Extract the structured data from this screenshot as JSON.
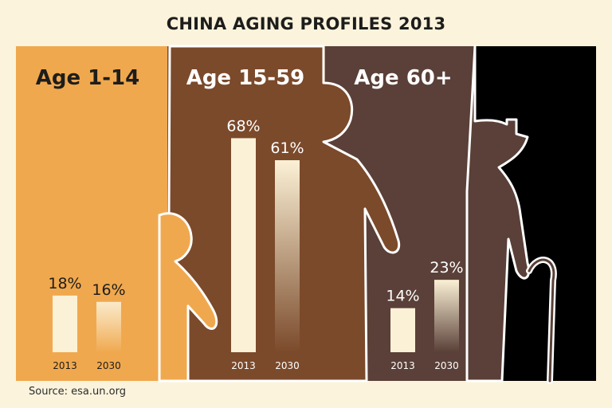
{
  "title": "CHINA AGING PROFILES 2013",
  "source": "Source: esa.un.org",
  "colors": {
    "background": "#fbf3dc",
    "group_1_14": "#f0a84e",
    "group_15_59": "#7b4a2b",
    "group_60_plus": "#5a4038",
    "black": "#000000",
    "bar_2013": "#fbf1d6"
  },
  "chart_data": {
    "type": "bar",
    "title": "CHINA AGING PROFILES 2013",
    "categories": [
      "Age 1-14",
      "Age 15-59",
      "Age 60+"
    ],
    "series": [
      {
        "name": "2013",
        "values": [
          18,
          68,
          14
        ]
      },
      {
        "name": "2030",
        "values": [
          16,
          61,
          23
        ]
      }
    ],
    "bar_labels": [
      "2013",
      "2030"
    ],
    "value_labels": [
      [
        "18%",
        "16%"
      ],
      [
        "68%",
        "61%"
      ],
      [
        "14%",
        "23%"
      ]
    ],
    "unit": "%",
    "ylim": [
      0,
      100
    ],
    "grid": false,
    "legend": "none"
  }
}
